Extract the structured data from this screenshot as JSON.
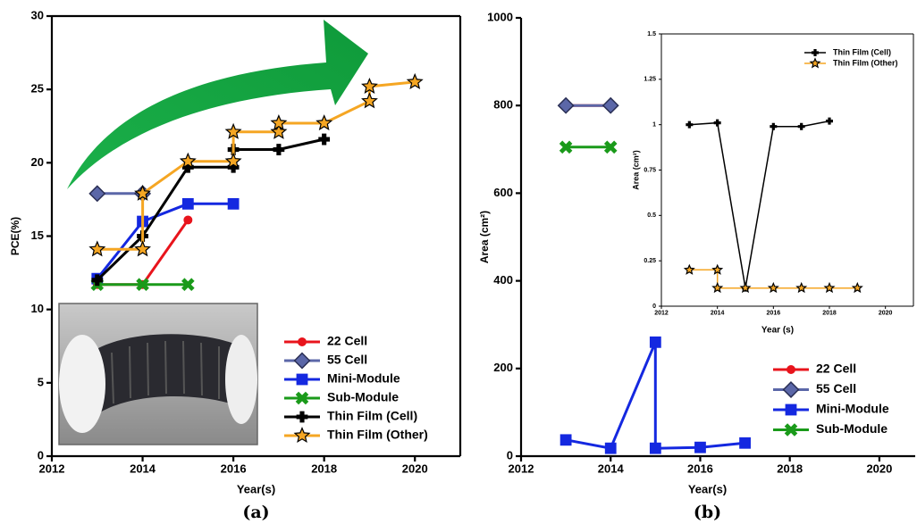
{
  "chart_data": [
    {
      "type": "line",
      "panel_label": "(a)",
      "xlabel": "Year(s)",
      "ylabel": "PCE(%)",
      "xlim": [
        2012,
        2021
      ],
      "xticks": [
        2012,
        2014,
        2016,
        2018,
        2020
      ],
      "ylim": [
        0,
        30
      ],
      "yticks": [
        0,
        5,
        10,
        15,
        20,
        25,
        30
      ],
      "legend": "lower right",
      "series": [
        {
          "name": "22 Cell",
          "color": "#e8141c",
          "marker": "circle",
          "x": [
            2013,
            2014,
            2015
          ],
          "values": [
            11.7,
            11.7,
            16.1
          ]
        },
        {
          "name": "55 Cell",
          "color": "#5b67a8",
          "marker": "diamond",
          "x": [
            2013,
            2014
          ],
          "values": [
            17.9,
            17.9
          ]
        },
        {
          "name": "Mini-Module",
          "color": "#1428e0",
          "marker": "square",
          "x": [
            2013,
            2014,
            2015,
            2016
          ],
          "values": [
            12.1,
            16.0,
            17.2,
            17.2
          ]
        },
        {
          "name": "Sub-Module",
          "color": "#1a9a1a",
          "marker": "x",
          "x": [
            2013,
            2014,
            2015
          ],
          "values": [
            11.7,
            11.7,
            11.7
          ]
        },
        {
          "name": "Thin Film (Cell)",
          "color": "#000000",
          "marker": "plus",
          "x": [
            2013,
            2014,
            2015,
            2016,
            2016,
            2017,
            2018
          ],
          "values": [
            12.0,
            15.0,
            19.7,
            19.7,
            20.9,
            20.9,
            21.6
          ]
        },
        {
          "name": "Thin Film (Other)",
          "color": "#f5a623",
          "marker": "star",
          "x": [
            2013,
            2014,
            2014,
            2015,
            2016,
            2016,
            2017,
            2017,
            2018,
            2019,
            2019,
            2020
          ],
          "values": [
            14.1,
            14.1,
            17.9,
            20.1,
            20.1,
            22.1,
            22.1,
            22.7,
            22.7,
            24.2,
            25.2,
            25.5
          ]
        }
      ]
    },
    {
      "type": "line",
      "panel_label": "(b)",
      "xlabel": "Year(s)",
      "ylabel": "Area (cm²)",
      "xlim": [
        2012,
        2020.8
      ],
      "xticks": [
        2012,
        2014,
        2016,
        2018,
        2020
      ],
      "ylim": [
        0,
        1000
      ],
      "yticks": [
        0,
        200,
        400,
        600,
        800,
        1000
      ],
      "legend": "lower right",
      "series": [
        {
          "name": "22 Cell",
          "color": "#e8141c",
          "marker": "circle",
          "x": [
            2013,
            2014
          ],
          "values": [
            800,
            800
          ]
        },
        {
          "name": "55 Cell",
          "color": "#5b67a8",
          "marker": "diamond",
          "x": [
            2013,
            2014
          ],
          "values": [
            800,
            800
          ]
        },
        {
          "name": "Mini-Module",
          "color": "#1428e0",
          "marker": "square",
          "x": [
            2013,
            2014,
            2015,
            2015,
            2016,
            2017
          ],
          "values": [
            37,
            18,
            260,
            18,
            20,
            30
          ]
        },
        {
          "name": "Sub-Module",
          "color": "#1a9a1a",
          "marker": "x",
          "x": [
            2013,
            2014
          ],
          "values": [
            705,
            705
          ]
        }
      ]
    },
    {
      "type": "line",
      "xlabel": "Year (s)",
      "ylabel": "Area (cm²)",
      "xlim": [
        2012,
        2021
      ],
      "xticks": [
        2012,
        2014,
        2016,
        2018,
        2020
      ],
      "ylim": [
        0,
        1.5
      ],
      "yticks": [
        0,
        0.25,
        0.5,
        0.75,
        1,
        1.25,
        1.5
      ],
      "legend": "upper right",
      "series": [
        {
          "name": "Thin Film (Cell)",
          "color": "#000000",
          "marker": "plus",
          "x": [
            2013,
            2014,
            2015,
            2016,
            2017,
            2018
          ],
          "values": [
            1.0,
            1.01,
            0.1,
            0.99,
            0.99,
            1.02
          ]
        },
        {
          "name": "Thin Film (Other)",
          "color": "#f5a623",
          "marker": "star",
          "x": [
            2013,
            2014,
            2014,
            2015,
            2016,
            2017,
            2018,
            2019
          ],
          "values": [
            0.2,
            0.2,
            0.1,
            0.1,
            0.1,
            0.1,
            0.1,
            0.1
          ]
        }
      ]
    }
  ]
}
